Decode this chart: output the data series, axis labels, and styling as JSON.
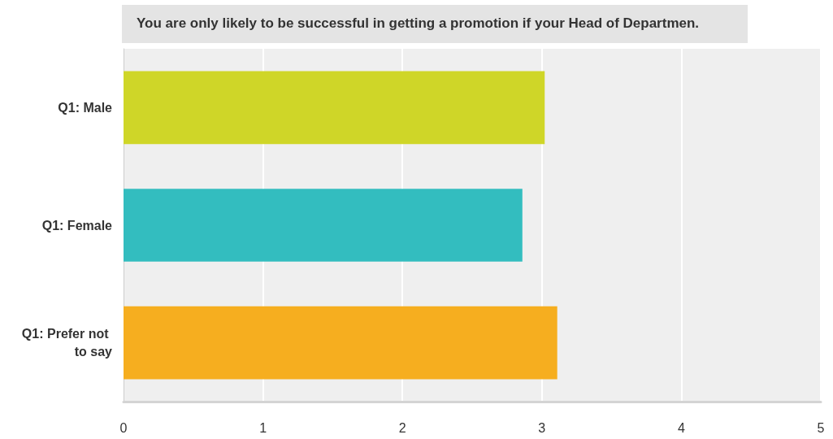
{
  "chart_data": {
    "type": "bar",
    "orientation": "horizontal",
    "title": "You are only likely to be successful in getting a promotion if your Head of Departmen.",
    "categories": [
      "Q1: Male",
      "Q1: Female",
      "Q1: Prefer not to say"
    ],
    "values": [
      3.02,
      2.86,
      3.11
    ],
    "colors": [
      "#cfd628",
      "#33bdbf",
      "#f6ae1f"
    ],
    "xlim": [
      0,
      5
    ],
    "xticks": [
      0,
      1,
      2,
      3,
      4,
      5
    ],
    "grid": "x"
  }
}
